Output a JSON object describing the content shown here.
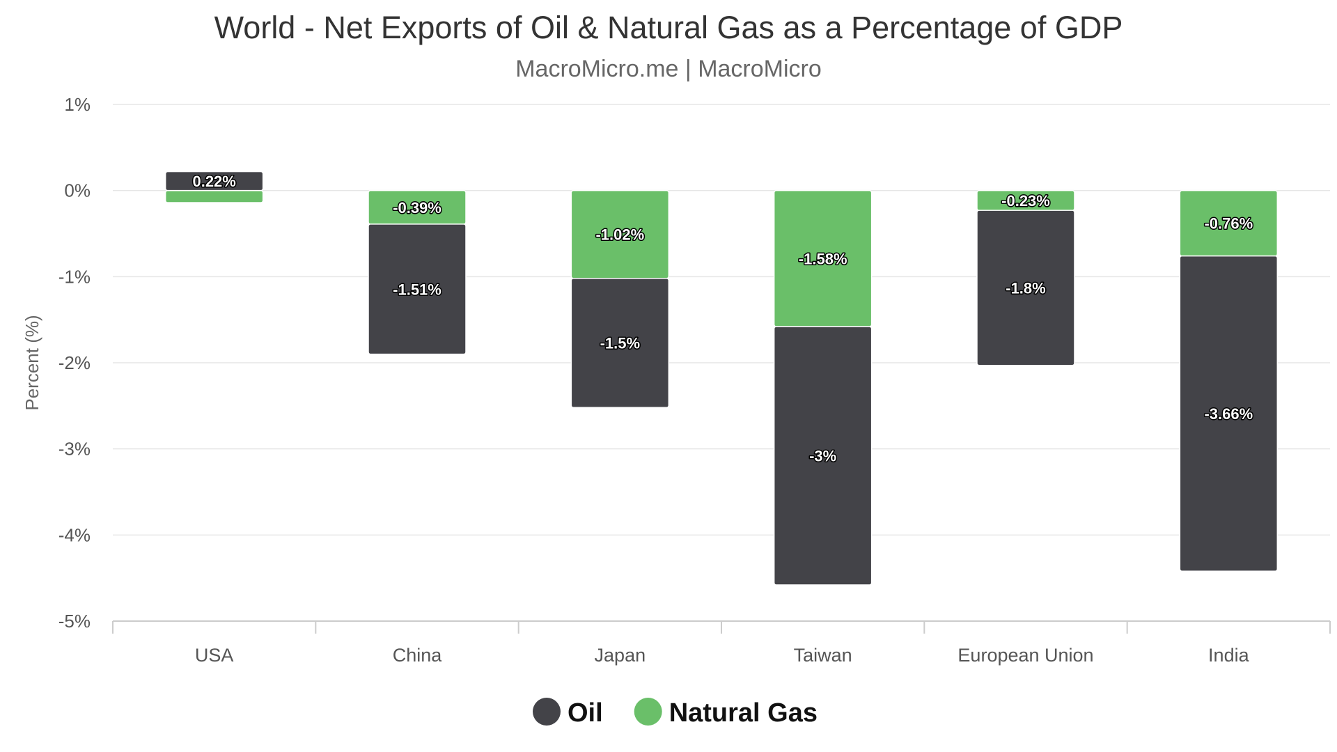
{
  "chart_data": {
    "type": "bar",
    "stacked": true,
    "title": "World - Net Exports of Oil & Natural Gas as a Percentage of GDP",
    "subtitle": "MacroMicro.me | MacroMicro",
    "ylabel": "Percent (%)",
    "xlabel": "",
    "ylim": [
      -5,
      1
    ],
    "yticks": [
      1,
      0,
      -1,
      -2,
      -3,
      -4,
      -5
    ],
    "ytick_labels": [
      "1%",
      "0%",
      "-1%",
      "-2%",
      "-3%",
      "-4%",
      "-5%"
    ],
    "categories": [
      "USA",
      "China",
      "Japan",
      "Taiwan",
      "European Union",
      "India"
    ],
    "series": [
      {
        "name": "Natural Gas",
        "color": "#6abf69",
        "values": [
          -0.14,
          -0.39,
          -1.02,
          -1.58,
          -0.23,
          -0.76
        ],
        "labels": [
          "",
          "-0.39%",
          "-1.02%",
          "-1.58%",
          "-0.23%",
          "-0.76%"
        ]
      },
      {
        "name": "Oil",
        "color": "#434348",
        "values": [
          0.22,
          -1.51,
          -1.5,
          -3,
          -1.8,
          -3.66
        ],
        "labels": [
          "0.22%",
          "-1.51%",
          "-1.5%",
          "-3%",
          "-1.8%",
          "-3.66%"
        ]
      }
    ],
    "legend": {
      "position": "bottom-center",
      "items": [
        {
          "name": "Oil",
          "color": "#434348"
        },
        {
          "name": "Natural Gas",
          "color": "#6abf69"
        }
      ]
    },
    "grid": true
  }
}
